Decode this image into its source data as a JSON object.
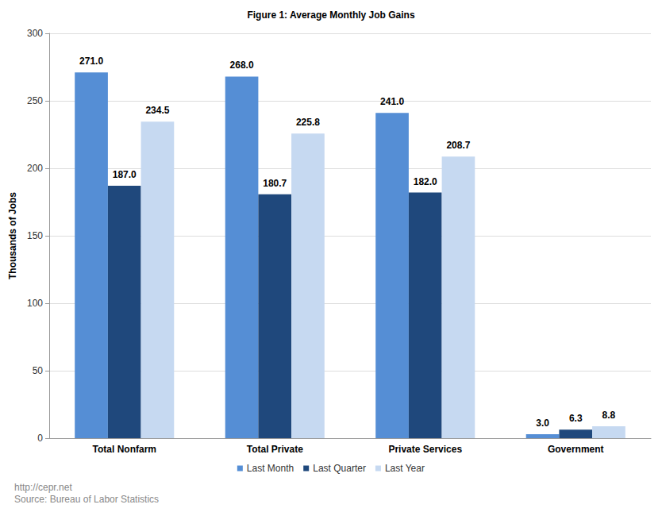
{
  "chart_data": {
    "type": "bar",
    "title": "Figure 1: Average Monthly Job Gains",
    "y_label": "Thousands of Jobs",
    "categories": [
      "Total Nonfarm",
      "Total Private",
      "Private Services",
      "Government"
    ],
    "series": [
      {
        "name": "Last Month",
        "color": "#558ed5",
        "values": [
          271.0,
          268.0,
          241.0,
          3.0
        ],
        "value_labels": [
          "271.0",
          "268.0",
          "241.0",
          "3.0"
        ]
      },
      {
        "name": "Last Quarter",
        "color": "#1f487c",
        "values": [
          187.0,
          180.7,
          182.0,
          6.3
        ],
        "value_labels": [
          "187.0",
          "180.7",
          "182.0",
          "6.3"
        ]
      },
      {
        "name": "Last Year",
        "color": "#c6d9f1",
        "values": [
          234.5,
          225.8,
          208.7,
          8.8
        ],
        "value_labels": [
          "234.5",
          "225.8",
          "208.7",
          "8.8"
        ]
      }
    ],
    "ylim": [
      0,
      300
    ],
    "yticks": [
      0,
      50,
      100,
      150,
      200,
      250,
      300
    ],
    "grid": true,
    "legend": "bottom",
    "data_labels": true,
    "annotations": [
      "http://cepr.net",
      "Source: Bureau of Labor Statistics"
    ]
  }
}
